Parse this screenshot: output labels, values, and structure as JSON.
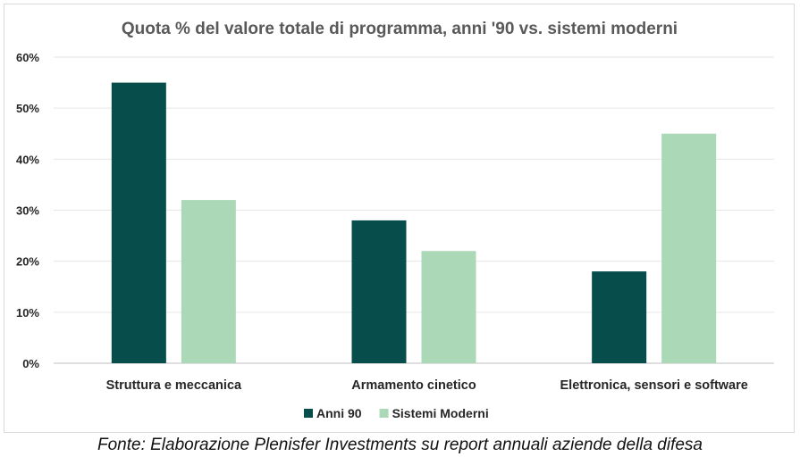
{
  "chart_data": {
    "type": "bar",
    "title": "Quota % del valore totale di programma, anni '90 vs. sistemi moderni",
    "categories": [
      "Struttura e meccanica",
      "Armamento cinetico",
      "Elettronica, sensori e software"
    ],
    "series": [
      {
        "name": "Anni 90",
        "values": [
          55,
          28,
          18
        ],
        "color": "#064d4b"
      },
      {
        "name": "Sistemi Moderni",
        "values": [
          32,
          22,
          45
        ],
        "color": "#abd9b8"
      }
    ],
    "ylim": [
      0,
      60
    ],
    "yticks": [
      0,
      10,
      20,
      30,
      40,
      50,
      60
    ],
    "ytick_labels": [
      "0%",
      "10%",
      "20%",
      "30%",
      "40%",
      "50%",
      "60%"
    ],
    "grid": true,
    "legend_position": "bottom"
  },
  "caption": "Fonte: Elaborazione Plenisfer Investments su report annuali aziende della difesa"
}
